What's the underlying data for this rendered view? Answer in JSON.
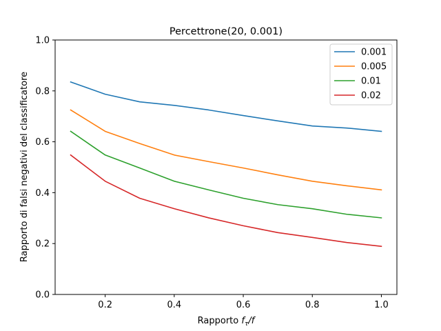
{
  "chart_data": {
    "type": "line",
    "title": "Percettrone(20, 0.001)",
    "xlabel_prefix": "Rapporto ",
    "xlabel_math": "f",
    "xlabel_sub": "τ",
    "xlabel_suffix": "/f",
    "ylabel": "Rapporto di falsi negativi del classificatore",
    "xlim": [
      0.055,
      1.045
    ],
    "ylim": [
      0.0,
      1.0
    ],
    "xticks": [
      0.2,
      0.4,
      0.6,
      0.8,
      1.0
    ],
    "xtick_labels": [
      "0.2",
      "0.4",
      "0.6",
      "0.8",
      "1.0"
    ],
    "yticks": [
      0.0,
      0.2,
      0.4,
      0.6,
      0.8,
      1.0
    ],
    "ytick_labels": [
      "0.0",
      "0.2",
      "0.4",
      "0.6",
      "0.8",
      "1.0"
    ],
    "grid": false,
    "legend_position": "top-right",
    "x": [
      0.1,
      0.2,
      0.3,
      0.4,
      0.5,
      0.6,
      0.7,
      0.8,
      0.9,
      1.0
    ],
    "series": [
      {
        "name": "0.001",
        "color": "#1f77b4",
        "values": [
          0.835,
          0.787,
          0.757,
          0.743,
          0.725,
          0.703,
          0.682,
          0.662,
          0.654,
          0.641
        ]
      },
      {
        "name": "0.005",
        "color": "#ff7f0e",
        "values": [
          0.725,
          0.641,
          0.593,
          0.548,
          0.522,
          0.497,
          0.47,
          0.445,
          0.427,
          0.411
        ]
      },
      {
        "name": "0.01",
        "color": "#2ca02c",
        "values": [
          0.641,
          0.548,
          0.497,
          0.445,
          0.411,
          0.378,
          0.353,
          0.337,
          0.315,
          0.301
        ]
      },
      {
        "name": "0.02",
        "color": "#d62728",
        "values": [
          0.548,
          0.445,
          0.378,
          0.337,
          0.301,
          0.27,
          0.243,
          0.224,
          0.204,
          0.189
        ]
      }
    ]
  }
}
